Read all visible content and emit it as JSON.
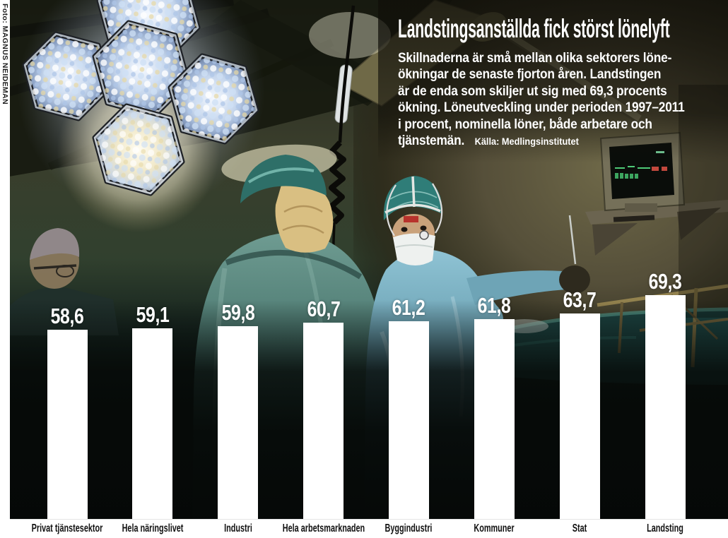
{
  "photo_credit": "Foto: MAGNUS NEIDEMAN",
  "header": {
    "title": "Landstingsanställda fick störst lönelyft",
    "body": "Skillnaderna är små mellan olika sektorers löne-\nökningar de senaste fjorton åren. Landstingen\när de enda som skiljer ut sig med 69,3 procents\nökning. Löneutveckling under perioden 1997–2011\ni procent, nominella löner, både arbetare och\ntjänstemän.",
    "source": "Källa: Medlingsinstitutet"
  },
  "chart_data": {
    "type": "bar",
    "title": "Landstingsanställda fick störst lönelyft",
    "subtitle": "Löneutveckling under perioden 1997–2011 i procent, nominella löner, både arbetare och tjänstemän",
    "source": "Källa: Medlingsinstitutet",
    "categories": [
      "Privat tjänstesektor",
      "Hela näringslivet",
      "Industri",
      "Hela arbetsmarknaden",
      "Byggindustri",
      "Kommuner",
      "Stat",
      "Landsting"
    ],
    "values": [
      58.6,
      59.1,
      59.8,
      60.7,
      61.2,
      61.8,
      63.7,
      69.3
    ],
    "value_labels": [
      "58,6",
      "59,1",
      "59,8",
      "60,7",
      "61,2",
      "61,8",
      "63,7",
      "69,3"
    ],
    "unit": "procent",
    "period": "1997–2011",
    "ylim": [
      0,
      70
    ],
    "grid": false,
    "legend": "none",
    "bar_color": "#ffffff",
    "value_label_color": "#ffffff",
    "category_label_color": "#111111",
    "axis_strip_color": "#ffffff"
  }
}
